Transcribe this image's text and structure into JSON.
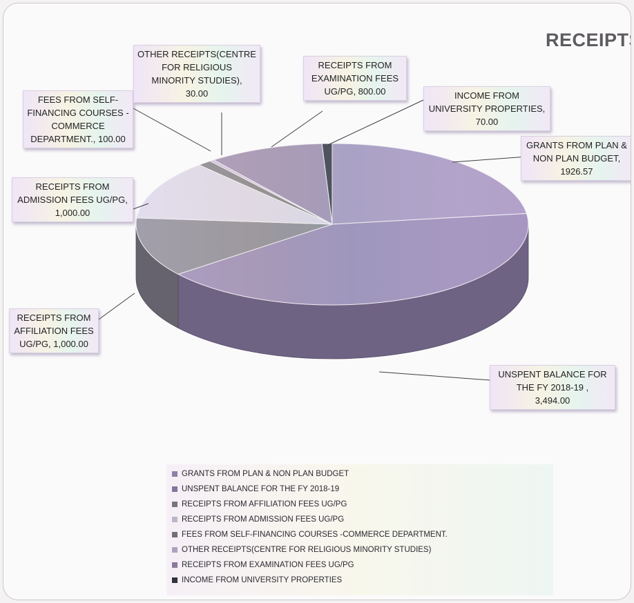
{
  "chart_data": {
    "type": "pie",
    "title": "RECEIPTS",
    "three_d": true,
    "legend_position": "bottom",
    "slices": [
      {
        "label": "GRANTS FROM PLAN & NON PLAN BUDGET",
        "value": 1926.57,
        "data_label": "GRANTS FROM PLAN & NON PLAN BUDGET, 1926.57",
        "color": "#a797c2"
      },
      {
        "label": "UNSPENT BALANCE  FOR THE  FY 2018-19",
        "value": 3494.0,
        "data_label": "UNSPENT BALANCE  FOR THE  FY 2018-19 , 3,494.00",
        "color": "#9a8ab8"
      },
      {
        "label": "RECEIPTS FROM AFFILIATION FEES UG/PG",
        "value": 1000.0,
        "data_label": "RECEIPTS FROM AFFILIATION FEES UG/PG, 1,000.00",
        "color": "#8d8a99"
      },
      {
        "label": "RECEIPTS FROM ADMISSION FEES UG/PG",
        "value": 1000.0,
        "data_label": "RECEIPTS FROM ADMISSION FEES UG/PG, 1,000.00",
        "color": "#dcd6ea"
      },
      {
        "label": "FEES FROM SELF-FINANCING COURSES -COMMERCE DEPARTMENT.",
        "value": 100.0,
        "data_label": "FEES FROM SELF-FINANCING COURSES -COMMERCE DEPARTMENT., 100.00",
        "color": "#85828d"
      },
      {
        "label": "OTHER RECEIPTS(CENTRE FOR RELIGIOUS MINORITY STUDIES)",
        "value": 30.0,
        "data_label": "OTHER RECEIPTS(CENTRE FOR RELIGIOUS MINORITY STUDIES), 30.00",
        "color": "#c9bde0"
      },
      {
        "label": "RECEIPTS FROM EXAMINATION FEES UG/PG",
        "value": 800.0,
        "data_label": "RECEIPTS FROM EXAMINATION FEES UG/PG, 800.00",
        "color": "#a08fb5"
      },
      {
        "label": "INCOME FROM UNIVERSITY PROPERTIES",
        "value": 70.0,
        "data_label": "INCOME FROM UNIVERSITY PROPERTIES, 70.00",
        "color": "#3a3a4a"
      }
    ]
  },
  "callouts": [
    {
      "lines": [
        "GRANTS FROM PLAN &",
        "NON PLAN BUDGET,",
        "1926.57"
      ]
    },
    {
      "lines": [
        "UNSPENT BALANCE  FOR",
        "THE  FY 2018-19 ,",
        "3,494.00"
      ]
    },
    {
      "lines": [
        "RECEIPTS FROM",
        "AFFILIATION FEES",
        "UG/PG, 1,000.00"
      ]
    },
    {
      "lines": [
        "RECEIPTS FROM",
        "ADMISSION FEES UG/PG,",
        "1,000.00"
      ]
    },
    {
      "lines": [
        "FEES FROM SELF-",
        "FINANCING COURSES -",
        "COMMERCE",
        "DEPARTMENT., 100.00"
      ]
    },
    {
      "lines": [
        "OTHER RECEIPTS(CENTRE",
        "FOR RELIGIOUS",
        "MINORITY STUDIES),",
        "30.00"
      ]
    },
    {
      "lines": [
        "RECEIPTS FROM",
        "EXAMINATION FEES",
        "UG/PG, 800.00"
      ]
    },
    {
      "lines": [
        "INCOME FROM",
        "UNIVERSITY PROPERTIES,",
        "70.00"
      ]
    }
  ]
}
